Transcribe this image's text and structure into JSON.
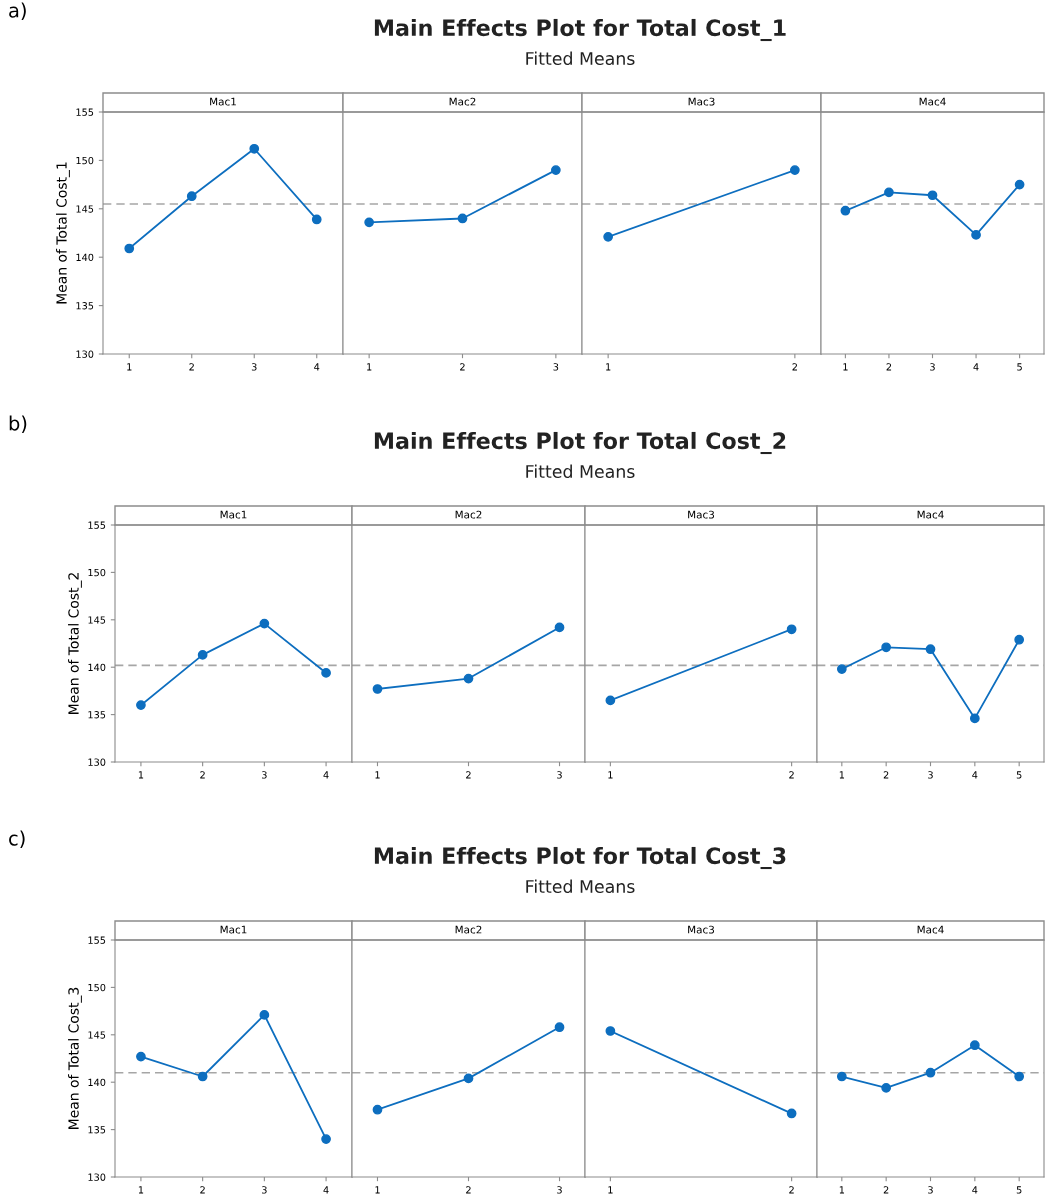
{
  "chart_data": [
    {
      "type": "line",
      "title": "Mac1",
      "ylabel": "Mean of Total Cost_1",
      "annotations": [
        "a)",
        "Main Effects Plot for Total Cost_1",
        "Fitted Means"
      ],
      "categories": [
        "1",
        "2",
        "3",
        "4"
      ],
      "series": [
        {
          "color": "#0d6ebf",
          "values": [
            140.9,
            146.3,
            151.2,
            143.9
          ]
        }
      ],
      "ylim": [
        130,
        155
      ],
      "yticks": [
        130,
        135,
        140,
        145,
        150,
        155
      ],
      "marker": "circle",
      "ref_lines": [
        {
          "axis": "y",
          "value": 145.5,
          "color": "#a6a6a6",
          "line_style": "dashed"
        }
      ]
    },
    {
      "type": "line",
      "title": "Mac2",
      "categories": [
        "1",
        "2",
        "3"
      ],
      "series": [
        {
          "color": "#0d6ebf",
          "values": [
            143.6,
            144.0,
            149.0
          ]
        }
      ],
      "ylim": [
        130,
        155
      ],
      "yticks": [
        130,
        135,
        140,
        145,
        150,
        155
      ],
      "tick_labels": "x",
      "marker": "circle",
      "ref_lines": [
        {
          "axis": "y",
          "value": 145.5,
          "color": "#a6a6a6",
          "line_style": "dashed"
        }
      ]
    },
    {
      "type": "line",
      "title": "Mac3",
      "categories": [
        "1",
        "2"
      ],
      "series": [
        {
          "color": "#0d6ebf",
          "values": [
            142.1,
            149.0
          ]
        }
      ],
      "ylim": [
        130,
        155
      ],
      "yticks": [
        130,
        135,
        140,
        145,
        150,
        155
      ],
      "tick_labels": "x",
      "marker": "circle",
      "ref_lines": [
        {
          "axis": "y",
          "value": 145.5,
          "color": "#a6a6a6",
          "line_style": "dashed"
        }
      ]
    },
    {
      "type": "line",
      "title": "Mac4",
      "categories": [
        "1",
        "2",
        "3",
        "4",
        "5"
      ],
      "series": [
        {
          "color": "#0d6ebf",
          "values": [
            144.8,
            146.7,
            146.4,
            142.3,
            147.5
          ]
        }
      ],
      "ylim": [
        130,
        155
      ],
      "yticks": [
        130,
        135,
        140,
        145,
        150,
        155
      ],
      "tick_labels": "x",
      "marker": "circle",
      "ref_lines": [
        {
          "axis": "y",
          "value": 145.5,
          "color": "#a6a6a6",
          "line_style": "dashed"
        }
      ]
    },
    {
      "type": "line",
      "title": "Mac1",
      "ylabel": "Mean of Total Cost_2",
      "annotations": [
        "b)",
        "Main Effects Plot for Total Cost_2",
        "Fitted Means"
      ],
      "categories": [
        "1",
        "2",
        "3",
        "4"
      ],
      "series": [
        {
          "color": "#0d6ebf",
          "values": [
            136.0,
            141.3,
            144.6,
            139.4
          ]
        }
      ],
      "ylim": [
        130,
        155
      ],
      "yticks": [
        130,
        135,
        140,
        145,
        150,
        155
      ],
      "marker": "circle",
      "ref_lines": [
        {
          "axis": "y",
          "value": 140.2,
          "color": "#a6a6a6",
          "line_style": "dashed"
        }
      ]
    },
    {
      "type": "line",
      "title": "Mac2",
      "categories": [
        "1",
        "2",
        "3"
      ],
      "series": [
        {
          "color": "#0d6ebf",
          "values": [
            137.7,
            138.8,
            144.2
          ]
        }
      ],
      "ylim": [
        130,
        155
      ],
      "yticks": [
        130,
        135,
        140,
        145,
        150,
        155
      ],
      "tick_labels": "x",
      "marker": "circle",
      "ref_lines": [
        {
          "axis": "y",
          "value": 140.2,
          "color": "#a6a6a6",
          "line_style": "dashed"
        }
      ]
    },
    {
      "type": "line",
      "title": "Mac3",
      "categories": [
        "1",
        "2"
      ],
      "series": [
        {
          "color": "#0d6ebf",
          "values": [
            136.5,
            144.0
          ]
        }
      ],
      "ylim": [
        130,
        155
      ],
      "yticks": [
        130,
        135,
        140,
        145,
        150,
        155
      ],
      "tick_labels": "x",
      "marker": "circle",
      "ref_lines": [
        {
          "axis": "y",
          "value": 140.2,
          "color": "#a6a6a6",
          "line_style": "dashed"
        }
      ]
    },
    {
      "type": "line",
      "title": "Mac4",
      "categories": [
        "1",
        "2",
        "3",
        "4",
        "5"
      ],
      "series": [
        {
          "color": "#0d6ebf",
          "values": [
            139.8,
            142.1,
            141.9,
            134.6,
            142.9
          ]
        }
      ],
      "ylim": [
        130,
        155
      ],
      "yticks": [
        130,
        135,
        140,
        145,
        150,
        155
      ],
      "tick_labels": "x",
      "marker": "circle",
      "ref_lines": [
        {
          "axis": "y",
          "value": 140.2,
          "color": "#a6a6a6",
          "line_style": "dashed"
        }
      ]
    },
    {
      "type": "line",
      "title": "Mac1",
      "ylabel": "Mean of Total Cost_3",
      "annotations": [
        "c)",
        "Main Effects Plot for Total Cost_3",
        "Fitted Means"
      ],
      "categories": [
        "1",
        "2",
        "3",
        "4"
      ],
      "series": [
        {
          "color": "#0d6ebf",
          "values": [
            142.7,
            140.6,
            147.1,
            134.0
          ]
        }
      ],
      "ylim": [
        130,
        155
      ],
      "yticks": [
        130,
        135,
        140,
        145,
        150,
        155
      ],
      "marker": "circle",
      "ref_lines": [
        {
          "axis": "y",
          "value": 141.0,
          "color": "#a6a6a6",
          "line_style": "dashed"
        }
      ]
    },
    {
      "type": "line",
      "title": "Mac2",
      "categories": [
        "1",
        "2",
        "3"
      ],
      "series": [
        {
          "color": "#0d6ebf",
          "values": [
            137.1,
            140.4,
            145.8
          ]
        }
      ],
      "ylim": [
        130,
        155
      ],
      "yticks": [
        130,
        135,
        140,
        145,
        150,
        155
      ],
      "tick_labels": "x",
      "marker": "circle",
      "ref_lines": [
        {
          "axis": "y",
          "value": 141.0,
          "color": "#a6a6a6",
          "line_style": "dashed"
        }
      ]
    },
    {
      "type": "line",
      "title": "Mac3",
      "categories": [
        "1",
        "2"
      ],
      "series": [
        {
          "color": "#0d6ebf",
          "values": [
            145.4,
            136.7
          ]
        }
      ],
      "ylim": [
        130,
        155
      ],
      "yticks": [
        130,
        135,
        140,
        145,
        150,
        155
      ],
      "tick_labels": "x",
      "marker": "circle",
      "ref_lines": [
        {
          "axis": "y",
          "value": 141.0,
          "color": "#a6a6a6",
          "line_style": "dashed"
        }
      ]
    },
    {
      "type": "line",
      "title": "Mac4",
      "categories": [
        "1",
        "2",
        "3",
        "4",
        "5"
      ],
      "series": [
        {
          "color": "#0d6ebf",
          "values": [
            140.6,
            139.4,
            141.0,
            143.9,
            140.6
          ]
        }
      ],
      "ylim": [
        130,
        155
      ],
      "yticks": [
        130,
        135,
        140,
        145,
        150,
        155
      ],
      "tick_labels": "x",
      "marker": "circle",
      "ref_lines": [
        {
          "axis": "y",
          "value": 141.0,
          "color": "#a6a6a6",
          "line_style": "dashed"
        }
      ]
    }
  ]
}
